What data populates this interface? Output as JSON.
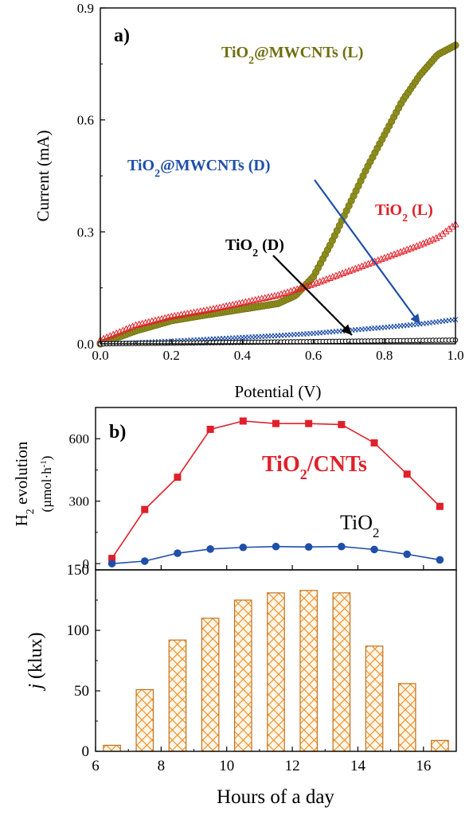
{
  "colors": {
    "olive": "#8c8c1e",
    "red": "#e0202a",
    "blue": "#1f4fa8",
    "black": "#000000",
    "bar_fill": "#f5a623",
    "bar_edge": "#c0701a"
  },
  "chart_data": [
    {
      "panel": "a)",
      "type": "line",
      "xlabel": "Potential (V)",
      "ylabel": "Current (mA)",
      "xlim": [
        0.0,
        1.0
      ],
      "ylim": [
        0.0,
        0.9
      ],
      "xticks": [
        "0.0",
        "0.2",
        "0.4",
        "0.6",
        "0.8",
        "1.0"
      ],
      "yticks": [
        "0.0",
        "0.3",
        "0.6",
        "0.9"
      ],
      "xtick_values": [
        0.0,
        0.2,
        0.4,
        0.6,
        0.8,
        1.0
      ],
      "ytick_values": [
        0.0,
        0.3,
        0.6,
        0.9
      ],
      "series": [
        {
          "name": "TiO2@MWCNTs (L)",
          "color": "olive",
          "x": [
            0.0,
            0.1,
            0.2,
            0.3,
            0.4,
            0.5,
            0.55,
            0.6,
            0.65,
            0.7,
            0.75,
            0.8,
            0.85,
            0.9,
            0.95,
            1.0
          ],
          "y": [
            0.0,
            0.035,
            0.062,
            0.078,
            0.093,
            0.108,
            0.13,
            0.18,
            0.27,
            0.37,
            0.47,
            0.56,
            0.65,
            0.72,
            0.775,
            0.8
          ]
        },
        {
          "name": "TiO2 (L)",
          "color": "red",
          "x": [
            0.0,
            0.1,
            0.2,
            0.3,
            0.4,
            0.5,
            0.6,
            0.7,
            0.8,
            0.9,
            0.95,
            1.0
          ],
          "y": [
            0.01,
            0.05,
            0.073,
            0.09,
            0.11,
            0.13,
            0.16,
            0.195,
            0.23,
            0.265,
            0.285,
            0.32
          ]
        },
        {
          "name": "TiO2@MWCNTs (D)",
          "color": "blue",
          "x": [
            0.0,
            0.1,
            0.2,
            0.3,
            0.4,
            0.5,
            0.6,
            0.7,
            0.8,
            0.9,
            1.0
          ],
          "y": [
            0.0,
            0.003,
            0.007,
            0.012,
            0.017,
            0.022,
            0.028,
            0.036,
            0.044,
            0.053,
            0.065
          ]
        },
        {
          "name": "TiO2 (D)",
          "color": "black",
          "x": [
            0.0,
            0.1,
            0.2,
            0.3,
            0.4,
            0.5,
            0.6,
            0.7,
            0.8,
            0.9,
            1.0
          ],
          "y": [
            0.0,
            0.001,
            0.002,
            0.003,
            0.004,
            0.005,
            0.006,
            0.007,
            0.008,
            0.009,
            0.01
          ]
        }
      ],
      "annotations": [
        {
          "text": "TiO2@MWCNTs (L)"
        },
        {
          "text": "TiO2@MWCNTs (D)"
        },
        {
          "text": "TiO2 (L)"
        },
        {
          "text": "TiO2 (D)"
        }
      ]
    },
    {
      "panel": "b)",
      "type": "line",
      "xlabel": "",
      "ylabel": "H2 evolution (µmol·h-1)",
      "ylim": [
        -30,
        750
      ],
      "yticks": [
        "0",
        "300",
        "600"
      ],
      "ytick_values": [
        0,
        300,
        600
      ],
      "x": [
        6.5,
        7.5,
        8.5,
        9.5,
        10.5,
        11.5,
        12.5,
        13.5,
        14.5,
        15.5,
        16.5
      ],
      "series": [
        {
          "name": "TiO2/CNTs",
          "color": "red",
          "values": [
            25,
            260,
            415,
            645,
            685,
            673,
            673,
            668,
            580,
            430,
            275
          ]
        },
        {
          "name": "TiO2",
          "color": "blue",
          "values": [
            0,
            12,
            50,
            70,
            78,
            82,
            80,
            82,
            68,
            45,
            18
          ]
        }
      ]
    },
    {
      "panel": "",
      "type": "bar",
      "xlabel": "Hours of a day",
      "ylabel": "j (klux)",
      "xlim": [
        6,
        17
      ],
      "ylim": [
        0,
        150
      ],
      "xticks": [
        "6",
        "8",
        "10",
        "12",
        "14",
        "16"
      ],
      "yticks": [
        "0",
        "50",
        "100",
        "150"
      ],
      "xtick_values": [
        6,
        8,
        10,
        12,
        14,
        16
      ],
      "ytick_values": [
        0,
        50,
        100,
        150
      ],
      "x": [
        6.5,
        7.5,
        8.5,
        9.5,
        10.5,
        11.5,
        12.5,
        13.5,
        14.5,
        15.5,
        16.5
      ],
      "values": [
        5,
        51,
        92,
        110,
        125,
        131,
        133,
        131,
        87,
        56,
        9
      ]
    }
  ]
}
